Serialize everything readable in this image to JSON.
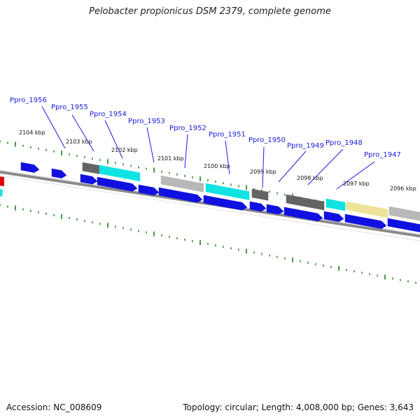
{
  "title": "Pelobacter propionicus DSM 2379, complete genome",
  "accession": "Accession: NC_008609",
  "stats": "Topology: circular; Length: 4,008,000 bp; Genes: 3,643",
  "colors": {
    "gene_label": "#1a1adc",
    "cds_blue": "#1010e0",
    "tick_green": "#1f7f1f",
    "backbone": "#8a8a8a",
    "cyan": "#11e3e3",
    "dark_gray": "#646464",
    "light_gray": "#b8b8b8",
    "khaki": "#eee39a",
    "red": "#e00000"
  },
  "gene_labels": [
    "Ppro_1956",
    "Ppro_1955",
    "Ppro_1954",
    "Ppro_1953",
    "Ppro_1952",
    "Ppro_1951",
    "Ppro_1950",
    "Ppro_1949",
    "Ppro_1948",
    "Ppro_1947"
  ],
  "kbp_labels": [
    "2104 kbp",
    "2103 kbp",
    "2102 kbp",
    "2101 kbp",
    "2100 kbp",
    "2099 kbp",
    "2098 kbp",
    "2097 kbp",
    "2096 kbp"
  ]
}
